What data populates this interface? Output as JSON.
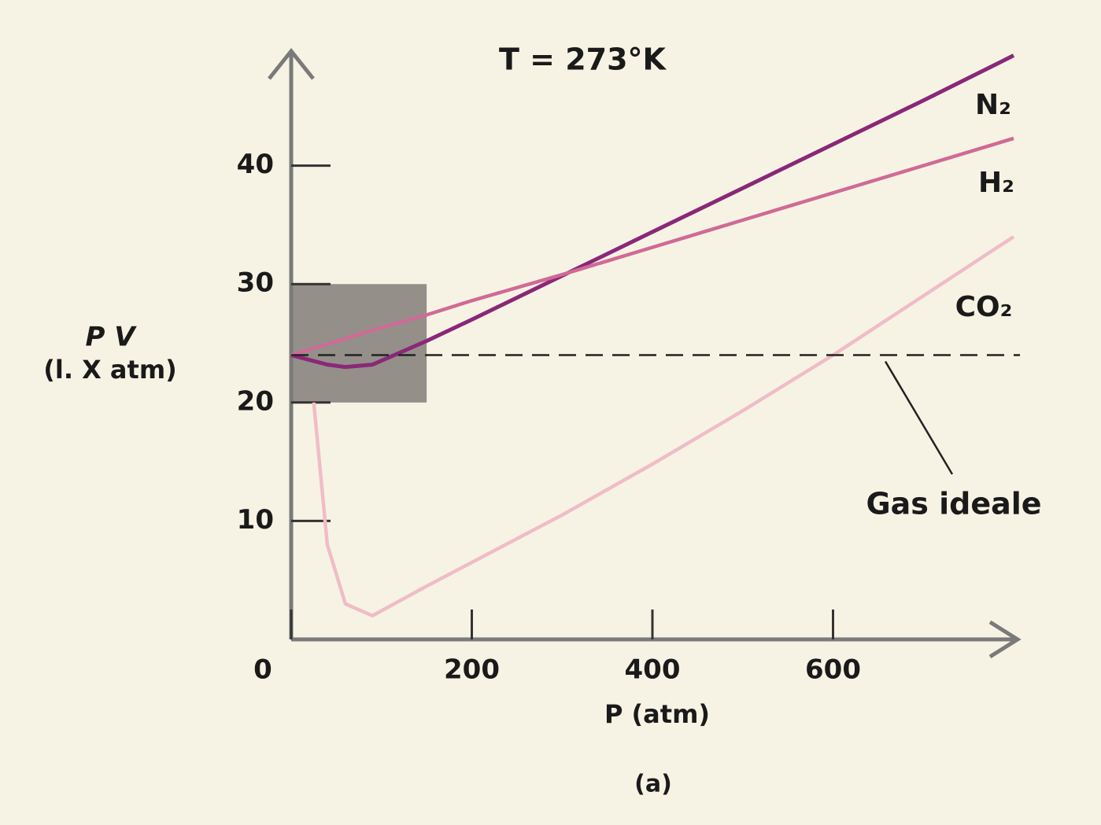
{
  "chart_data": {
    "type": "line",
    "title": "T = 273°K",
    "x_label": "P (atm)",
    "y_label": [
      "P V",
      "(l. X atm)"
    ],
    "caption": "(a)",
    "x": [
      0,
      25,
      40,
      60,
      90,
      150,
      200,
      300,
      400,
      500,
      600,
      700,
      800
    ],
    "series": [
      {
        "name": "N₂",
        "color": "#8a2878",
        "values": [
          24,
          23.5,
          23.2,
          23,
          23.2,
          25.2,
          27,
          30.7,
          34.4,
          38.1,
          41.8,
          45.5,
          49.3
        ]
      },
      {
        "name": "H₂",
        "color": "#d06a96",
        "values": [
          24,
          24.6,
          24.9,
          25.4,
          26.1,
          27.4,
          28.6,
          30.8,
          33.1,
          35.4,
          37.7,
          40,
          42.3
        ]
      },
      {
        "name": "CO₂",
        "color": "#f0bcc8",
        "values": [
          null,
          20,
          8,
          3,
          2,
          4.5,
          6.5,
          10.5,
          14.8,
          19.3,
          24,
          29,
          34
        ]
      }
    ],
    "reference_line": {
      "value": 24,
      "label": "Gas ideale"
    },
    "highlight_box": {
      "xlim": [
        0,
        150
      ],
      "ylim": [
        20,
        30
      ],
      "color": "#8a8480"
    },
    "xlim": [
      0,
      800
    ],
    "ylim": [
      0,
      50
    ],
    "xticks": [
      0,
      200,
      400,
      600
    ],
    "yticks": [
      10,
      20,
      30,
      40
    ],
    "axis_color": "#7a7a7a"
  }
}
